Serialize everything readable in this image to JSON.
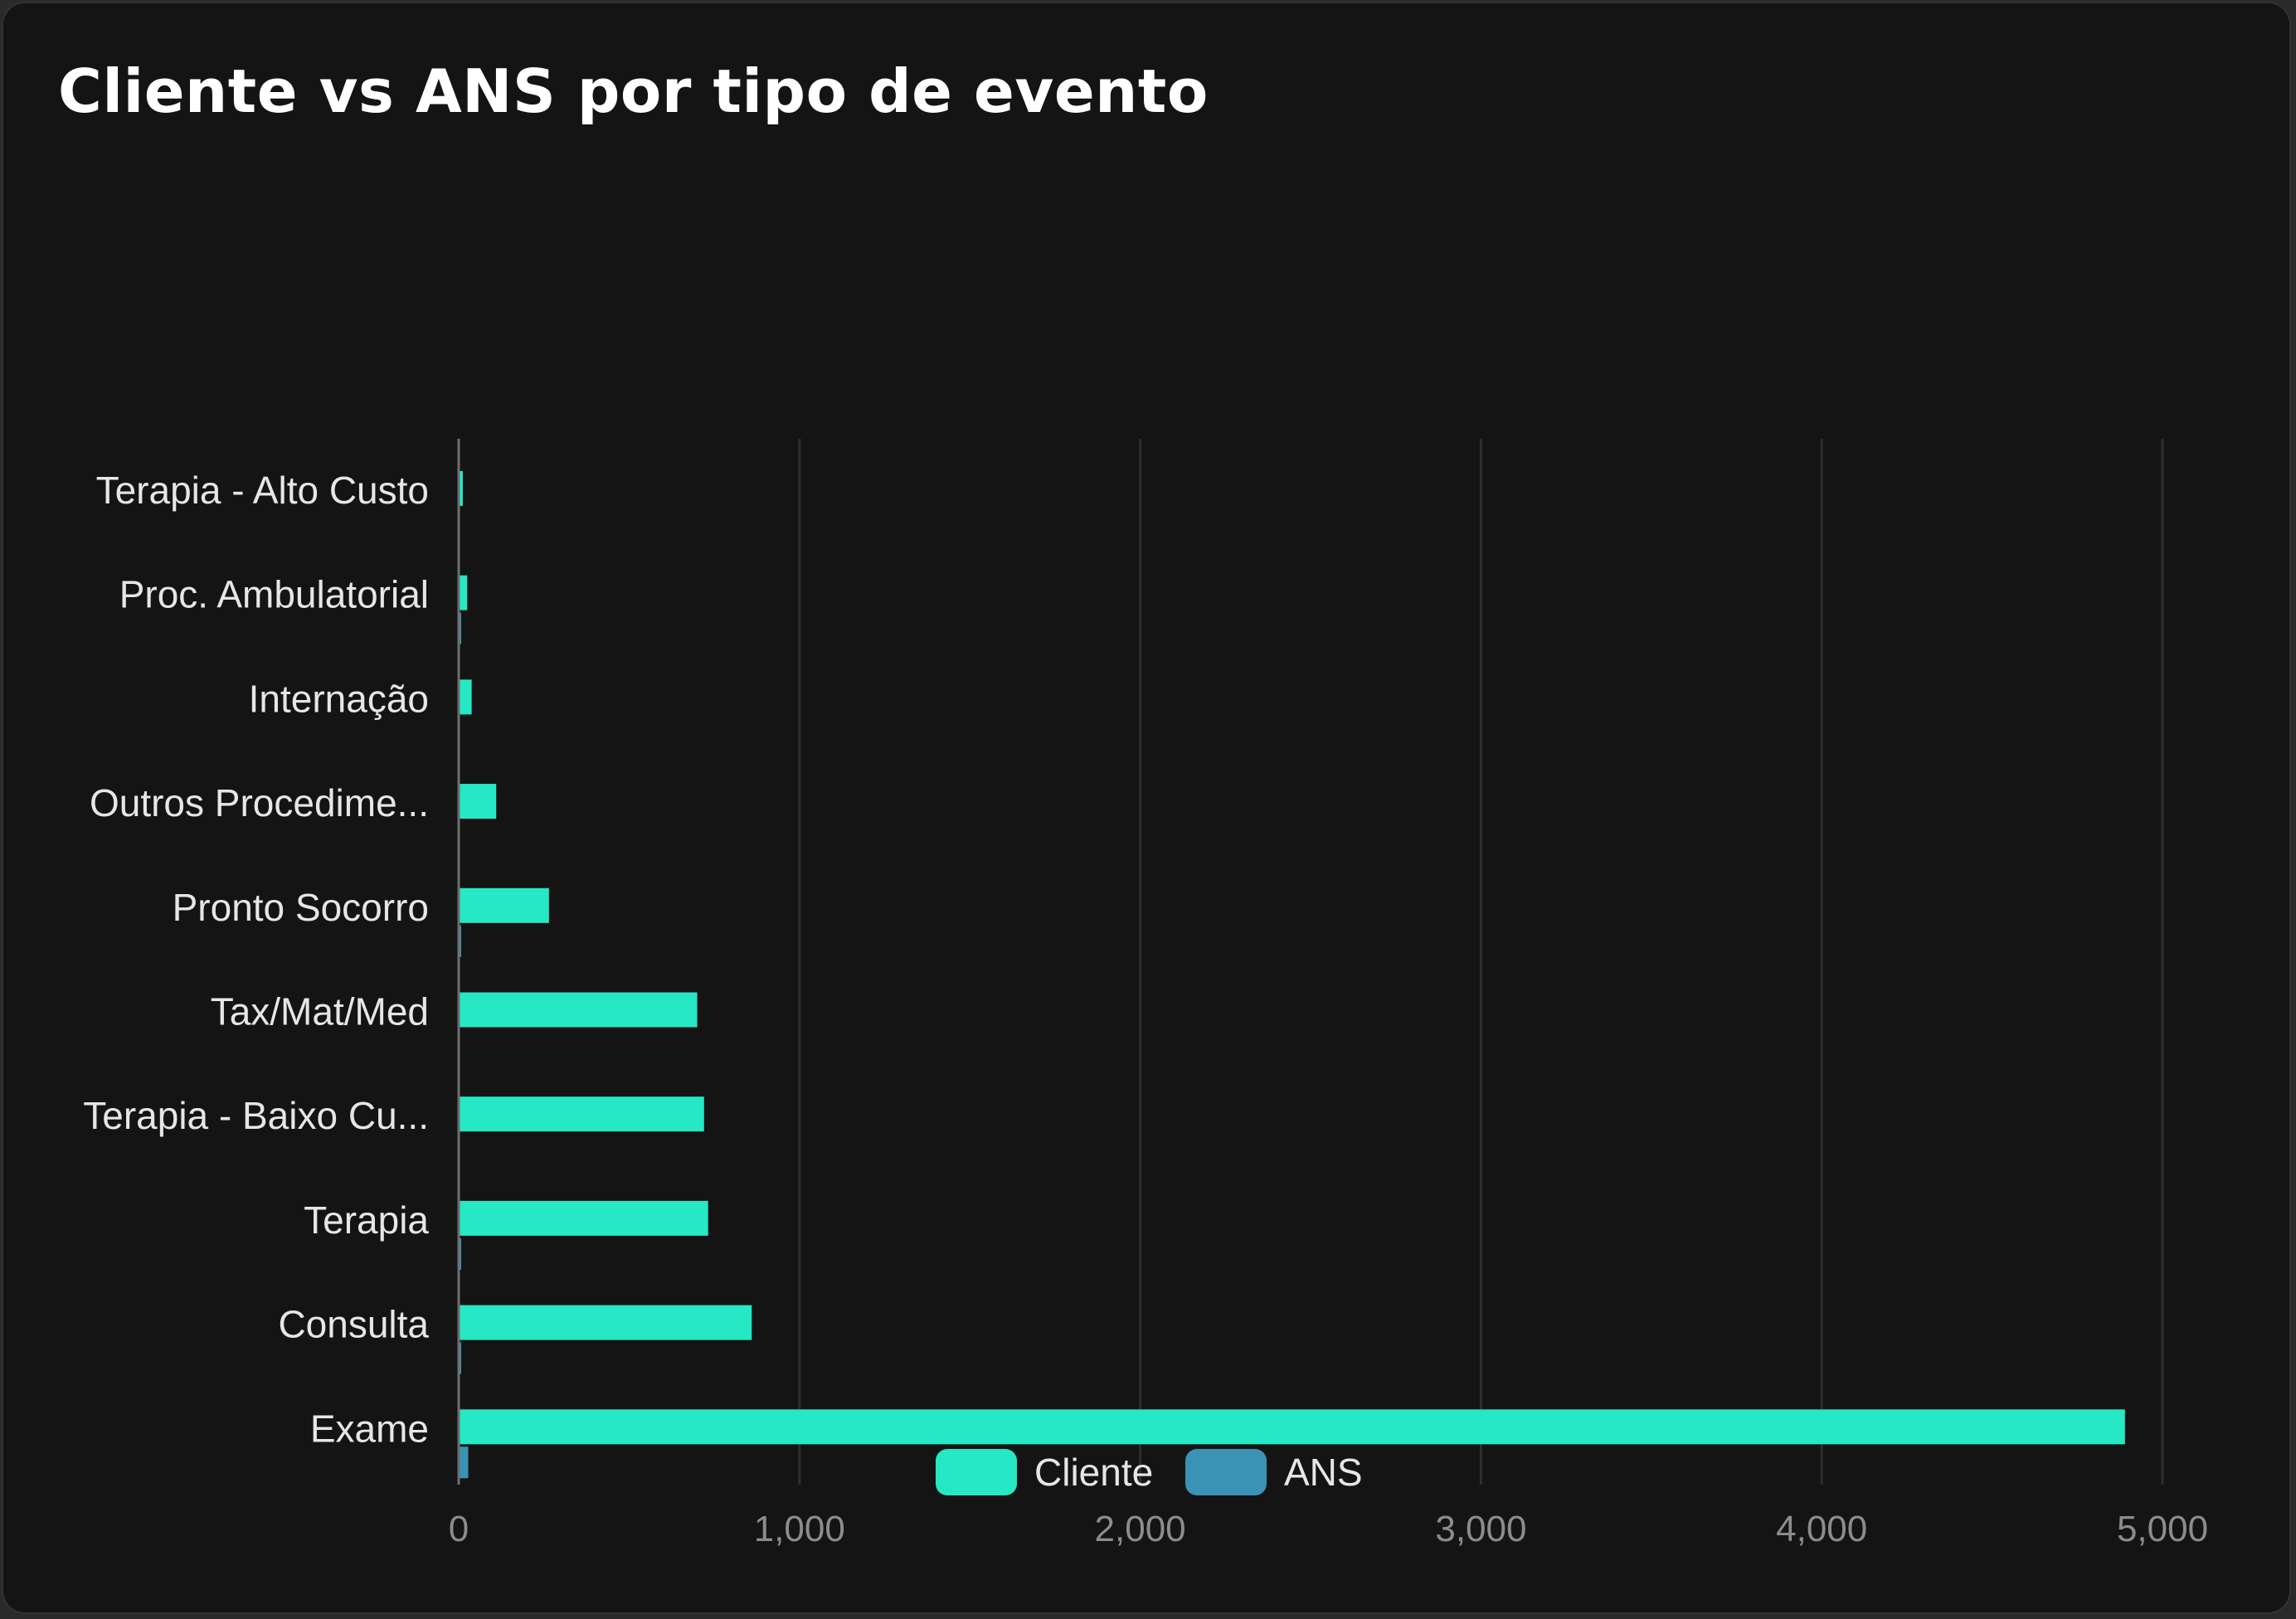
{
  "chart_data": {
    "type": "bar",
    "orientation": "horizontal",
    "title": "Cliente vs ANS por tipo de evento",
    "xlabel": "",
    "ylabel": "",
    "xlim": [
      0,
      5000
    ],
    "x_ticks": [
      0,
      1000,
      2000,
      3000,
      4000,
      5000
    ],
    "x_tick_labels": [
      "0",
      "1,000",
      "2,000",
      "3,000",
      "4,000",
      "5,000"
    ],
    "grid": true,
    "legend_position": "bottom-center",
    "categories": [
      "Terapia - Alto Custo",
      "Proc. Ambulatorial",
      "Internação",
      "Outros Procedime...",
      "Pronto Socorro",
      "Tax/Mat/Med",
      "Terapia - Baixo Cu...",
      "Terapia",
      "Consulta",
      "Exame"
    ],
    "series": [
      {
        "name": "Cliente",
        "color": "#26e8c5",
        "values": [
          12,
          25,
          38,
          110,
          265,
          700,
          720,
          732,
          860,
          4890
        ]
      },
      {
        "name": "ANS",
        "color": "#3a93b5",
        "values": [
          0,
          4,
          0,
          0,
          2,
          0,
          0,
          2,
          6,
          28
        ]
      }
    ]
  }
}
